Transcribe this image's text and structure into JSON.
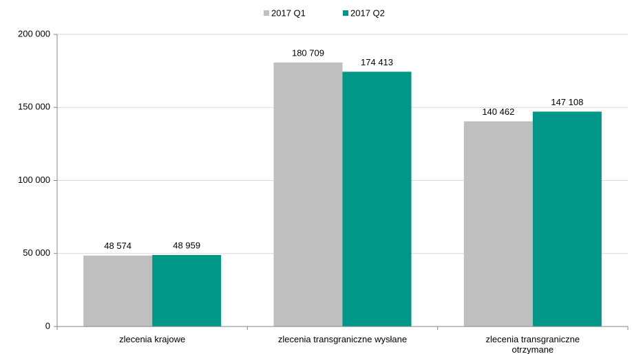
{
  "chart_data": {
    "type": "bar",
    "categories": [
      "zlecenia krajowe",
      "zlecenia transgraniczne wysłane",
      "zlecenia transgraniczne otrzymane"
    ],
    "series": [
      {
        "name": "2017 Q1",
        "color": "#bfbfbf",
        "values": [
          48574,
          180709,
          140462
        ],
        "value_labels": [
          "48 574",
          "180 709",
          "140 462"
        ]
      },
      {
        "name": "2017 Q2",
        "color": "#009688",
        "values": [
          48959,
          174413,
          147108
        ],
        "value_labels": [
          "48 959",
          "174 413",
          "147 108"
        ]
      }
    ],
    "ylim": [
      0,
      200000
    ],
    "yticks": [
      {
        "value": 0,
        "label": "0"
      },
      {
        "value": 50000,
        "label": "50 000"
      },
      {
        "value": 100000,
        "label": "100 000"
      },
      {
        "value": 150000,
        "label": "150 000"
      },
      {
        "value": 200000,
        "label": "200 000"
      }
    ],
    "grid": true,
    "legend": "top"
  }
}
